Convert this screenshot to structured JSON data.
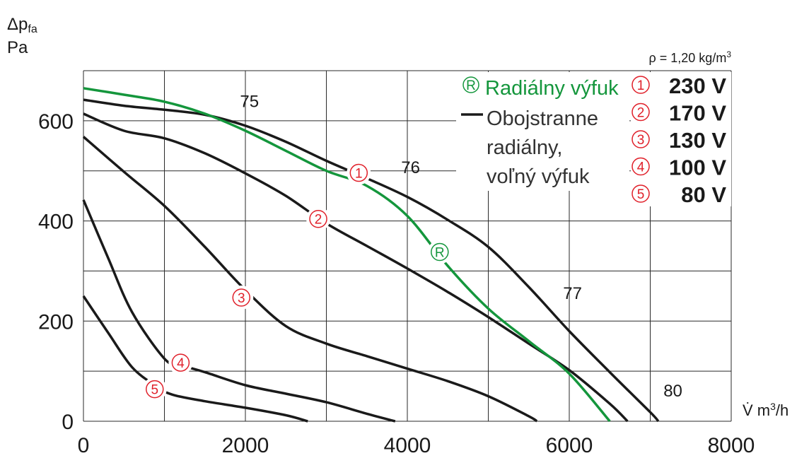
{
  "chart_data": {
    "type": "line",
    "ylabel_line1_base": "Δp",
    "ylabel_line1_sub": "fa",
    "ylabel_line2": "Pa",
    "xlabel_base": "V̇ m",
    "xlabel_sup": "3",
    "xlabel_tail": "/h",
    "density_note_base": "ρ = 1,20 kg/m",
    "density_note_sup": "3",
    "xlim": [
      0,
      8000
    ],
    "ylim": [
      0,
      700
    ],
    "x_ticks": [
      0,
      2000,
      4000,
      6000,
      8000
    ],
    "x_tick_labels": [
      "0",
      "2000",
      "4000",
      "6000",
      "8000"
    ],
    "y_ticks": [
      0,
      200,
      400,
      600
    ],
    "y_tick_labels": [
      "0",
      "200",
      "400",
      "600"
    ],
    "grid_x": [
      0,
      1000,
      2000,
      3000,
      4000,
      5000,
      6000,
      7000,
      8000
    ],
    "grid_y": [
      0,
      100,
      200,
      300,
      400,
      500,
      600,
      700
    ],
    "grid": true,
    "colors": {
      "curves": "#1a1a1a",
      "radial": "#14963c",
      "markers": "#e0202a"
    },
    "series": [
      {
        "id": "1",
        "style": "black",
        "x": [
          0,
          500,
          1000,
          1500,
          2000,
          2500,
          3000,
          3500,
          4000,
          4500,
          5000,
          5500,
          6000,
          6500,
          7000,
          7100
        ],
        "y": [
          642,
          630,
          622,
          612,
          590,
          558,
          520,
          485,
          448,
          402,
          348,
          268,
          180,
          98,
          18,
          0
        ]
      },
      {
        "id": "2",
        "style": "black",
        "x": [
          0,
          500,
          1000,
          1500,
          2000,
          2500,
          3000,
          3500,
          4000,
          4500,
          5000,
          5500,
          6000,
          6500,
          6720
        ],
        "y": [
          614,
          580,
          565,
          535,
          495,
          450,
          395,
          350,
          305,
          258,
          208,
          155,
          102,
          35,
          0
        ]
      },
      {
        "id": "3",
        "style": "black",
        "x": [
          0,
          500,
          1000,
          1500,
          2000,
          2500,
          3000,
          3500,
          4000,
          4500,
          5000,
          5500,
          5600
        ],
        "y": [
          568,
          498,
          430,
          348,
          262,
          190,
          155,
          130,
          105,
          80,
          50,
          10,
          0
        ]
      },
      {
        "id": "4",
        "style": "black",
        "x": [
          0,
          300,
          600,
          1000,
          1200,
          1500,
          2000,
          2500,
          3000,
          3500,
          3850
        ],
        "y": [
          442,
          328,
          218,
          125,
          112,
          98,
          72,
          55,
          38,
          15,
          0
        ]
      },
      {
        "id": "5",
        "style": "black",
        "x": [
          0,
          300,
          600,
          900,
          1100,
          1500,
          2000,
          2500,
          2770
        ],
        "y": [
          250,
          178,
          108,
          70,
          53,
          40,
          27,
          12,
          0
        ]
      },
      {
        "id": "R",
        "style": "green",
        "x": [
          0,
          500,
          1000,
          1500,
          2000,
          2500,
          3000,
          3500,
          4000,
          4500,
          5000,
          5500,
          6000,
          6500
        ],
        "y": [
          665,
          652,
          638,
          614,
          580,
          540,
          500,
          470,
          410,
          310,
          225,
          160,
          95,
          0
        ]
      }
    ],
    "markers": [
      {
        "label": "1",
        "x": 3400,
        "y": 496,
        "color": "red"
      },
      {
        "label": "2",
        "x": 2900,
        "y": 404,
        "color": "red"
      },
      {
        "label": "3",
        "x": 1950,
        "y": 247,
        "color": "red"
      },
      {
        "label": "4",
        "x": 1200,
        "y": 117,
        "color": "red"
      },
      {
        "label": "5",
        "x": 880,
        "y": 64,
        "color": "red"
      },
      {
        "label": "R",
        "x": 4400,
        "y": 338,
        "color": "green"
      }
    ],
    "efficiency_labels": [
      {
        "text": "75",
        "x": 2050,
        "y": 640
      },
      {
        "text": "76",
        "x": 4040,
        "y": 508
      },
      {
        "text": "77",
        "x": 6040,
        "y": 257
      },
      {
        "text": "80",
        "x": 7280,
        "y": 62
      }
    ],
    "legend": {
      "placement": "top-right",
      "radial_marker": "R",
      "radial_text": "Radiálny výfuk",
      "black_text": [
        "Obojstranne",
        "radiálny,",
        "voľný výfuk"
      ],
      "voltages": [
        {
          "marker": "1",
          "text": "230 V"
        },
        {
          "marker": "2",
          "text": "170 V"
        },
        {
          "marker": "3",
          "text": "130 V"
        },
        {
          "marker": "4",
          "text": "100 V"
        },
        {
          "marker": "5",
          "text": "80 V"
        }
      ]
    }
  }
}
